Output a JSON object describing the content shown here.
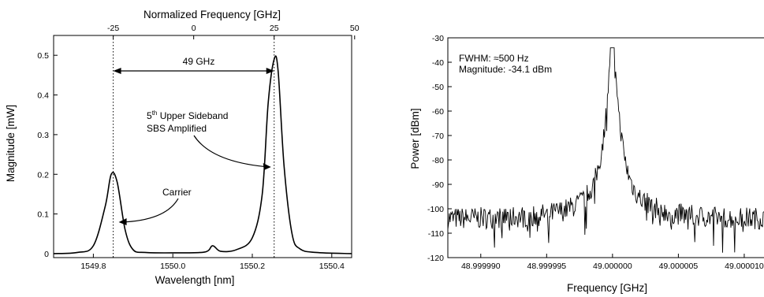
{
  "chart_data": [
    {
      "type": "line",
      "top_xlabel": "Normalized Frequency [GHz]",
      "top_ticks": [
        "-25",
        "0",
        "25",
        "50"
      ],
      "xlabel": "Wavelength [nm]",
      "ylabel": "Magnitude [mW]",
      "xlim": [
        1549.7,
        1550.45
      ],
      "ylim": [
        -0.01,
        0.55
      ],
      "x_ticks": [
        "1549.8",
        "1550.0",
        "1550.2",
        "1550.4"
      ],
      "y_ticks": [
        "0",
        "0.1",
        "0.2",
        "0.3",
        "0.4",
        "0.5"
      ],
      "grid": false,
      "series": [
        {
          "x": [
            1549.7,
            1549.76,
            1549.8,
            1549.83,
            1549.845,
            1549.86,
            1549.88,
            1549.9,
            1549.93,
            1550.0,
            1550.08,
            1550.1,
            1550.12,
            1550.16,
            1550.2,
            1550.225,
            1550.24,
            1550.255,
            1550.265,
            1550.28,
            1550.3,
            1550.32,
            1550.36,
            1550.45
          ],
          "y": [
            0.0,
            0.003,
            0.02,
            0.12,
            0.2,
            0.18,
            0.06,
            0.01,
            0.003,
            0.002,
            0.004,
            0.02,
            0.006,
            0.01,
            0.04,
            0.15,
            0.38,
            0.49,
            0.46,
            0.22,
            0.05,
            0.012,
            0.003,
            0.0
          ]
        }
      ],
      "annotations": {
        "spacing": "49 GHz",
        "sideband_line1_pre": "5",
        "sideband_line1_sup": "th",
        "sideband_line1_post": " Upper Sideband",
        "sideband_line2": "SBS Amplified",
        "carrier": "Carrier"
      },
      "markers": {
        "carrier_x": 1549.85,
        "sideband_x": 1550.255
      }
    },
    {
      "type": "line",
      "xlabel": "Frequency [GHz]",
      "ylabel": "Power [dBm]",
      "xlim": [
        48.9999875,
        49.0000115
      ],
      "ylim": [
        -120,
        -30
      ],
      "x_ticks": [
        "48.999990",
        "48.999995",
        "49.000000",
        "49.000005",
        "49.000010"
      ],
      "x_tick_values": [
        48.99999,
        48.999995,
        49.0,
        49.000005,
        49.00001
      ],
      "y_ticks": [
        "-30",
        "-40",
        "-50",
        "-60",
        "-70",
        "-80",
        "-90",
        "-100",
        "-110",
        "-120"
      ],
      "grid": false,
      "peak": {
        "x": 49.0,
        "y": -34.1
      },
      "annotations": {
        "fwhm": "FWHM: ≈500 Hz",
        "magnitude": "Magnitude: -34.1 dBm"
      }
    }
  ]
}
